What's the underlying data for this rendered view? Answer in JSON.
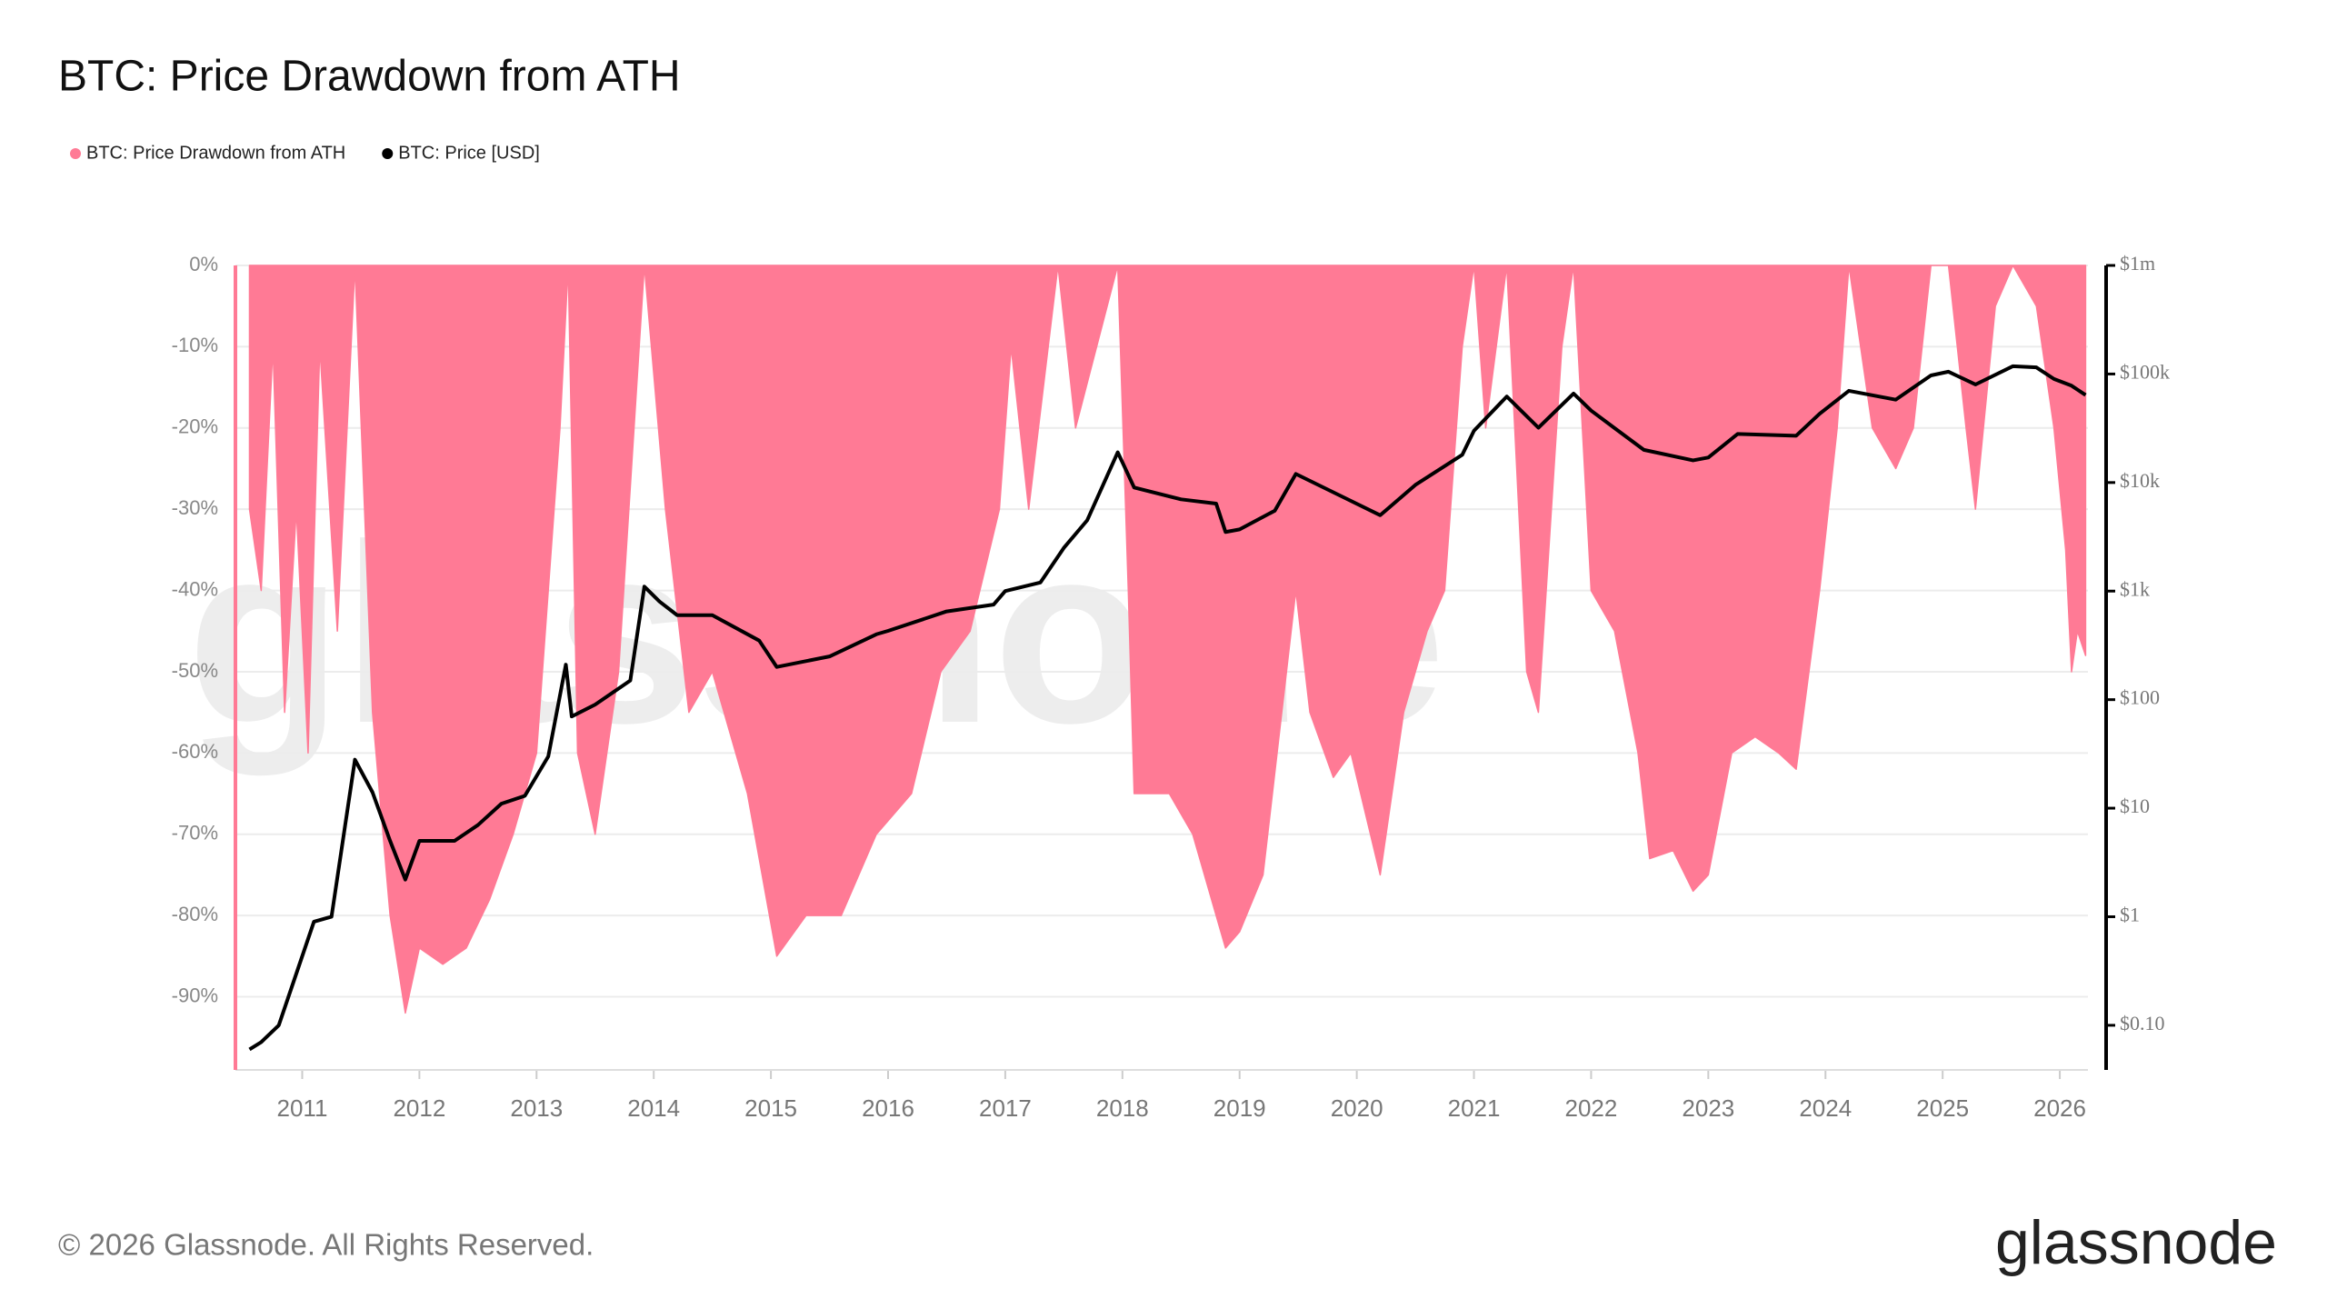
{
  "chart_data": {
    "type": "area-line",
    "title": "BTC: Price Drawdown from ATH",
    "watermark": "glassnode",
    "footer": "© 2026 Glassnode. All Rights Reserved.",
    "brand": "glassnode",
    "xlim": [
      2010.43,
      2026.24
    ],
    "xticks": [
      2011,
      2012,
      2013,
      2014,
      2015,
      2016,
      2017,
      2018,
      2019,
      2020,
      2021,
      2022,
      2023,
      2024,
      2025,
      2026
    ],
    "ylim": [
      -99,
      0
    ],
    "yticks": [
      {
        "value": 0,
        "label": "0%"
      },
      {
        "value": -10,
        "label": "-10%"
      },
      {
        "value": -20,
        "label": "-20%"
      },
      {
        "value": -30,
        "label": "-30%"
      },
      {
        "value": -40,
        "label": "-40%"
      },
      {
        "value": -50,
        "label": "-50%"
      },
      {
        "value": -60,
        "label": "-60%"
      },
      {
        "value": -70,
        "label": "-70%"
      },
      {
        "value": -80,
        "label": "-80%"
      },
      {
        "value": -90,
        "label": "-90%"
      }
    ],
    "y2lim": [
      0.0388,
      1000000
    ],
    "y2scale": "log",
    "y2ticks": [
      {
        "value": 1000000,
        "label": "$1m"
      },
      {
        "value": 100000,
        "label": "$100k"
      },
      {
        "value": 10000,
        "label": "$10k"
      },
      {
        "value": 1000,
        "label": "$1k"
      },
      {
        "value": 100,
        "label": "$100"
      },
      {
        "value": 10,
        "label": "$10"
      },
      {
        "value": 1,
        "label": "$1"
      },
      {
        "value": 0.1,
        "label": "$0.10"
      }
    ],
    "grid": true,
    "series": [
      {
        "name": "BTC: Price Drawdown from ATH",
        "color": "#ff7a95",
        "kind": "area",
        "x": [
          2010.55,
          2010.65,
          2010.75,
          2010.85,
          2010.95,
          2011.05,
          2011.15,
          2011.3,
          2011.45,
          2011.6,
          2011.75,
          2011.88,
          2012.0,
          2012.2,
          2012.4,
          2012.6,
          2012.8,
          2013.0,
          2013.2,
          2013.27,
          2013.35,
          2013.5,
          2013.7,
          2013.92,
          2014.1,
          2014.3,
          2014.5,
          2014.8,
          2015.05,
          2015.3,
          2015.6,
          2015.9,
          2016.2,
          2016.45,
          2016.7,
          2016.95,
          2017.05,
          2017.2,
          2017.45,
          2017.6,
          2017.96,
          2018.05,
          2018.1,
          2018.4,
          2018.6,
          2018.88,
          2019.0,
          2019.2,
          2019.48,
          2019.6,
          2019.8,
          2019.95,
          2020.2,
          2020.4,
          2020.6,
          2020.75,
          2020.9,
          2021.0,
          2021.1,
          2021.28,
          2021.45,
          2021.55,
          2021.75,
          2021.85,
          2022.0,
          2022.2,
          2022.4,
          2022.5,
          2022.7,
          2022.87,
          2023.0,
          2023.2,
          2023.4,
          2023.6,
          2023.75,
          2023.95,
          2024.1,
          2024.2,
          2024.4,
          2024.6,
          2024.75,
          2024.9,
          2025.05,
          2025.2,
          2025.28,
          2025.45,
          2025.6,
          2025.8,
          2025.95,
          2026.05,
          2026.1,
          2026.15,
          2026.22
        ],
        "values": [
          -30,
          -40,
          -10,
          -55,
          -30,
          -60,
          -10,
          -45,
          0,
          -55,
          -80,
          -92,
          -84,
          -86,
          -84,
          -78,
          -70,
          -60,
          -20,
          0,
          -60,
          -70,
          -50,
          0,
          -30,
          -55,
          -50,
          -65,
          -85,
          -80,
          -80,
          -70,
          -65,
          -50,
          -45,
          -30,
          -10,
          -30,
          0,
          -20,
          0,
          -40,
          -65,
          -65,
          -70,
          -84,
          -82,
          -75,
          -40,
          -55,
          -63,
          -60,
          -75,
          -55,
          -45,
          -40,
          -10,
          0,
          -20,
          0,
          -50,
          -55,
          -10,
          0,
          -40,
          -45,
          -60,
          -73,
          -72,
          -77,
          -75,
          -60,
          -58,
          -60,
          -62,
          -40,
          -20,
          0,
          -20,
          -25,
          -20,
          0,
          0,
          -20,
          -30,
          -5,
          0,
          -5,
          -20,
          -35,
          -50,
          -45,
          -48
        ]
      },
      {
        "name": "BTC: Price [USD]",
        "color": "#000000",
        "kind": "line",
        "axis": "y2",
        "x": [
          2010.55,
          2010.65,
          2010.8,
          2010.95,
          2011.1,
          2011.25,
          2011.45,
          2011.6,
          2011.75,
          2011.88,
          2012.0,
          2012.3,
          2012.5,
          2012.7,
          2012.9,
          2013.1,
          2013.25,
          2013.3,
          2013.5,
          2013.8,
          2013.92,
          2014.05,
          2014.2,
          2014.5,
          2014.9,
          2015.05,
          2015.5,
          2015.9,
          2016.0,
          2016.5,
          2016.9,
          2017.0,
          2017.3,
          2017.5,
          2017.7,
          2017.96,
          2018.1,
          2018.5,
          2018.8,
          2018.88,
          2019.0,
          2019.3,
          2019.48,
          2019.9,
          2020.2,
          2020.5,
          2020.9,
          2021.0,
          2021.28,
          2021.55,
          2021.85,
          2022.0,
          2022.45,
          2022.87,
          2023.0,
          2023.25,
          2023.75,
          2023.95,
          2024.2,
          2024.6,
          2024.9,
          2025.05,
          2025.28,
          2025.6,
          2025.8,
          2025.95,
          2026.1,
          2026.22
        ],
        "values": [
          0.06,
          0.07,
          0.1,
          0.3,
          0.9,
          1,
          28,
          14,
          5,
          2.2,
          5,
          5,
          7,
          11,
          13,
          30,
          210,
          70,
          90,
          150,
          1100,
          800,
          600,
          600,
          350,
          200,
          250,
          400,
          430,
          650,
          750,
          1000,
          1200,
          2500,
          4500,
          19000,
          9000,
          7000,
          6400,
          3500,
          3700,
          5500,
          12000,
          7200,
          5000,
          9500,
          18000,
          30000,
          62000,
          32000,
          66000,
          46000,
          20000,
          16000,
          17000,
          28000,
          27000,
          43000,
          70000,
          58000,
          97000,
          105000,
          80000,
          118000,
          115000,
          90000,
          78000,
          64000
        ]
      }
    ]
  }
}
